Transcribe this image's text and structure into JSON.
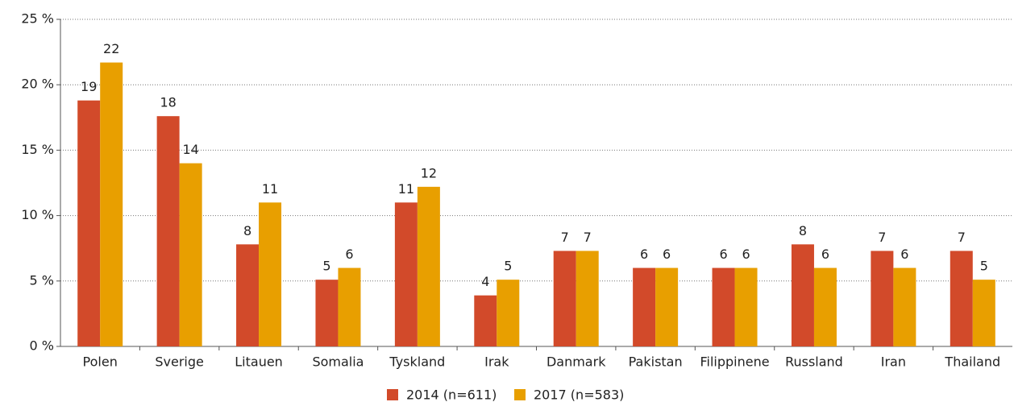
{
  "chart_data": {
    "type": "bar",
    "categories": [
      "Polen",
      "Sverige",
      "Litauen",
      "Somalia",
      "Tyskland",
      "Irak",
      "Danmark",
      "Pakistan",
      "Filippinene",
      "Russland",
      "Iran",
      "Thailand"
    ],
    "series": [
      {
        "name": "2014 (n=611)",
        "color": "#d24a2a",
        "values": [
          18.8,
          17.6,
          7.8,
          5.1,
          11.0,
          3.9,
          7.3,
          6.0,
          6.0,
          7.8,
          7.3,
          7.3
        ],
        "value_labels": [
          "19",
          "18",
          "8",
          "5",
          "11",
          "4",
          "7",
          "6",
          "6",
          "8",
          "7",
          "7"
        ]
      },
      {
        "name": "2017 (n=583)",
        "color": "#e89f00",
        "values": [
          21.7,
          14.0,
          11.0,
          6.0,
          12.2,
          5.1,
          7.3,
          6.0,
          6.0,
          6.0,
          6.0,
          5.1
        ],
        "value_labels": [
          "22",
          "14",
          "11",
          "6",
          "12",
          "5",
          "7",
          "6",
          "6",
          "6",
          "6",
          "5"
        ]
      }
    ],
    "ylim": [
      0,
      25
    ],
    "yticks": [
      {
        "value": 0,
        "label": "0 %"
      },
      {
        "value": 5,
        "label": "5 %"
      },
      {
        "value": 10,
        "label": "10 %"
      },
      {
        "value": 15,
        "label": "15 %"
      },
      {
        "value": 20,
        "label": "20 %"
      },
      {
        "value": 25,
        "label": "25 %"
      }
    ],
    "grid": true,
    "legend": "bottom"
  }
}
